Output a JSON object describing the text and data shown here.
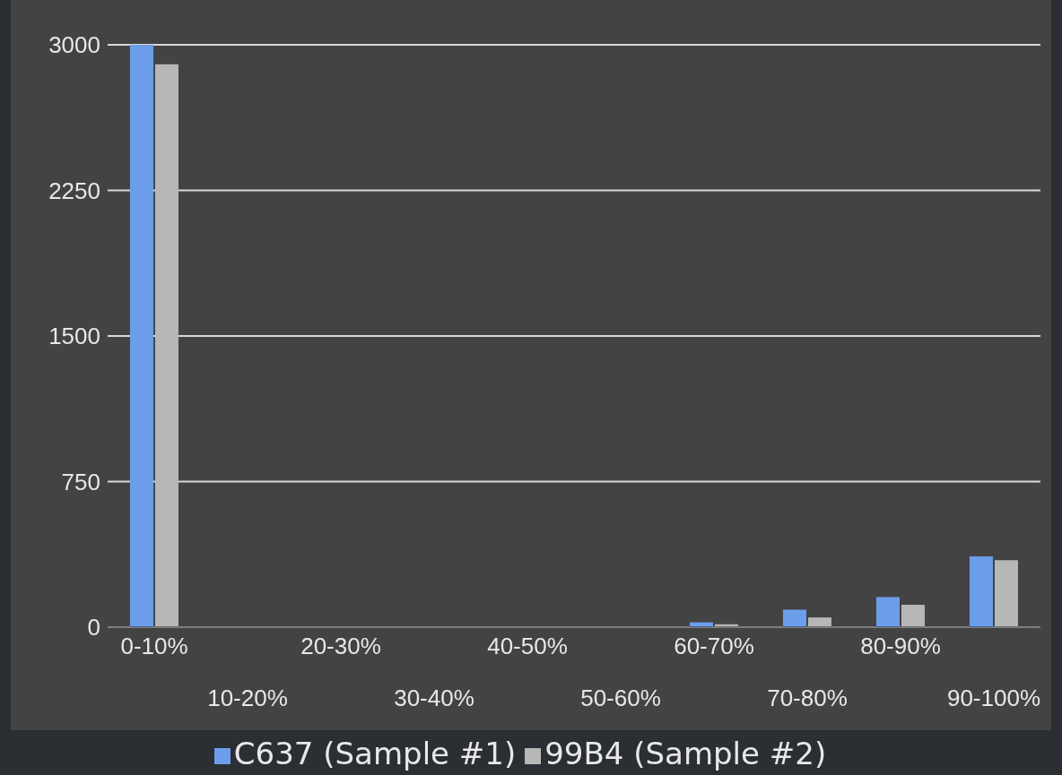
{
  "chart_data": {
    "type": "bar",
    "categories": [
      "0-10%",
      "10-20%",
      "20-30%",
      "30-40%",
      "40-50%",
      "50-60%",
      "60-70%",
      "70-80%",
      "80-90%",
      "90-100%"
    ],
    "series": [
      {
        "name": "C637 (Sample #1)",
        "color": "#6d9eeb",
        "values": [
          3000,
          0,
          0,
          0,
          0,
          0,
          25,
          90,
          155,
          365
        ]
      },
      {
        "name": "99B4 (Sample #2)",
        "color": "#b7b7b7",
        "values": [
          2900,
          0,
          0,
          0,
          0,
          0,
          15,
          50,
          115,
          345
        ]
      }
    ],
    "ylim": [
      0,
      3000
    ],
    "yticks": [
      0,
      750,
      1500,
      2250,
      3000
    ],
    "grid": "y",
    "legend": "bottom"
  }
}
